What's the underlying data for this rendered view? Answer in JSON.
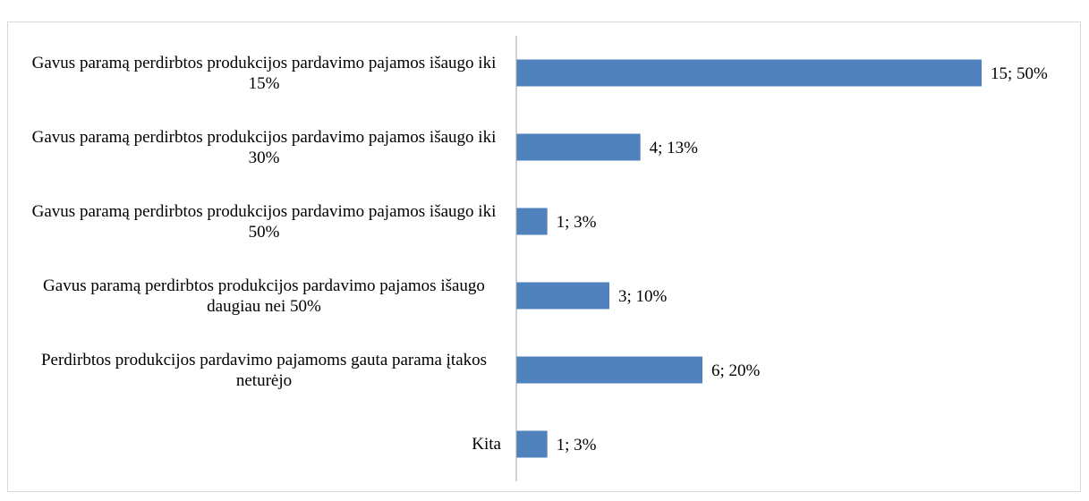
{
  "chart_data": {
    "type": "bar",
    "orientation": "horizontal",
    "categories": [
      "Gavus paramą perdirbtos produkcijos pardavimo pajamos išaugo iki 15%",
      "Gavus paramą perdirbtos produkcijos pardavimo pajamos išaugo iki 30%",
      "Gavus paramą perdirbtos produkcijos pardavimo pajamos išaugo iki 50%",
      "Gavus paramą perdirbtos produkcijos pardavimo pajamos išaugo daugiau nei 50%",
      "Perdirbtos produkcijos pardavimo pajamoms gauta parama įtakos neturėjo",
      "Kita"
    ],
    "values": [
      15,
      4,
      1,
      3,
      6,
      1
    ],
    "value_labels": [
      "15; 50%",
      "4; 13%",
      "1; 3%",
      "3; 10%",
      "6; 20%",
      "1; 3%"
    ],
    "color": "#4f81bd"
  }
}
